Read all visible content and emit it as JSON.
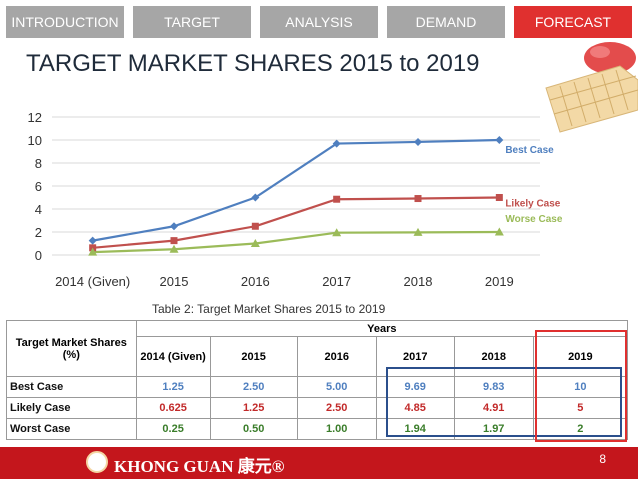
{
  "tabs": [
    {
      "label": "INTRODUCTION",
      "active": false
    },
    {
      "label": "TARGET",
      "active": false
    },
    {
      "label": "ANALYSIS",
      "active": false
    },
    {
      "label": "DEMAND",
      "active": false
    },
    {
      "label": "FORECAST",
      "active": true
    }
  ],
  "page_title": "TARGET MARKET SHARES 2015 to 2019",
  "colors": {
    "tab_active": "#e0302f",
    "tab_inactive": "#a6a6a6",
    "best": "#4f7fbf",
    "likely": "#c0504d",
    "worst": "#9bbb59",
    "footer": "#c4161c"
  },
  "chart_data": {
    "type": "line",
    "categories": [
      "2014 (Given)",
      "2015",
      "2016",
      "2017",
      "2018",
      "2019"
    ],
    "series": [
      {
        "name": "Best Case",
        "values": [
          1.25,
          2.5,
          5.0,
          9.69,
          9.83,
          10
        ]
      },
      {
        "name": "Likely Case",
        "values": [
          0.625,
          1.25,
          2.5,
          4.85,
          4.91,
          5
        ]
      },
      {
        "name": "Worse Case",
        "values": [
          0.25,
          0.5,
          1.0,
          1.94,
          1.97,
          2
        ]
      }
    ],
    "yticks": [
      "0",
      "2",
      "4",
      "6",
      "8",
      "10",
      "12"
    ],
    "ylim": [
      0,
      12
    ],
    "grid": true,
    "legend": "inline-right"
  },
  "table": {
    "caption": "Table 2: Target Market Shares 2015 to 2019",
    "group_header": "Years",
    "row_header": "Target Market Shares (%)",
    "columns": [
      "2014 (Given)",
      "2015",
      "2016",
      "2017",
      "2018",
      "2019"
    ],
    "rows": [
      {
        "label": "Best Case",
        "values": [
          "1.25",
          "2.50",
          "5.00",
          "9.69",
          "9.83",
          "10"
        ]
      },
      {
        "label": "Likely Case",
        "values": [
          "0.625",
          "1.25",
          "2.50",
          "4.85",
          "4.91",
          "5"
        ]
      },
      {
        "label": "Worst Case",
        "values": [
          "0.25",
          "0.50",
          "1.00",
          "1.94",
          "1.97",
          "2"
        ]
      }
    ]
  },
  "footer": {
    "brand": "KHONG GUAN 康元®",
    "page_number": "8"
  }
}
